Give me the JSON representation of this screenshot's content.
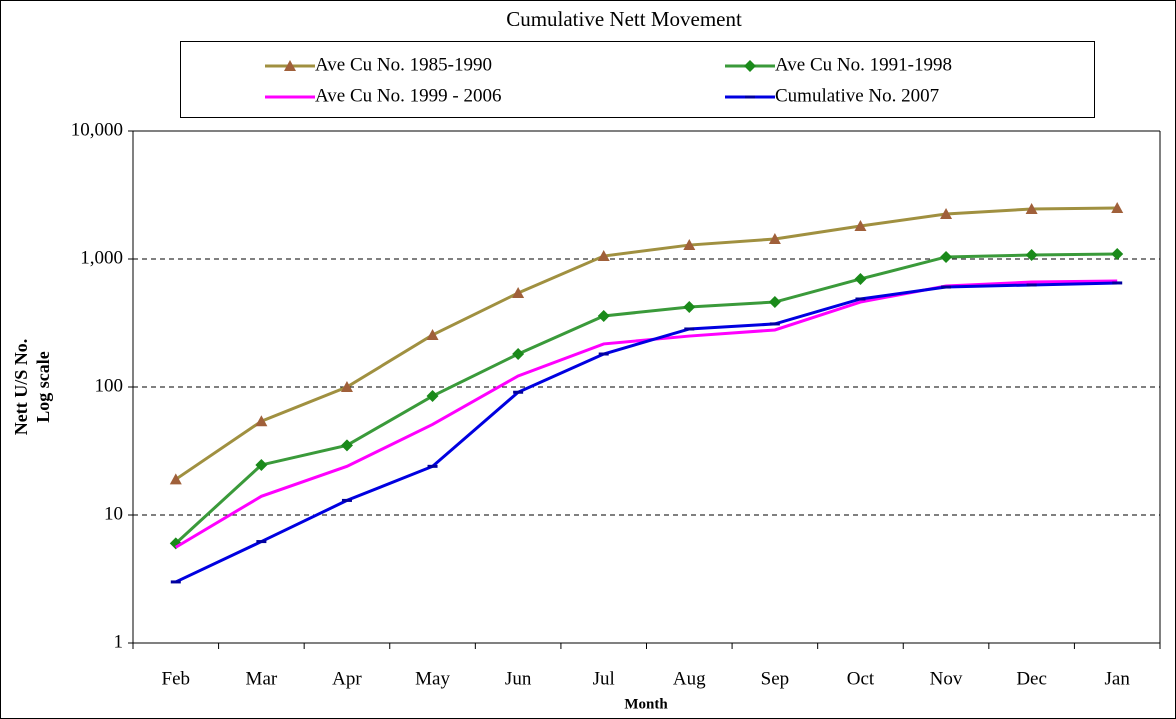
{
  "chart_data": {
    "type": "line",
    "title": "Cumulative Nett Movement",
    "xlabel": "Month",
    "ylabel": [
      "Nett U/S No.",
      "Log scale"
    ],
    "categories": [
      "Feb",
      "Mar",
      "Apr",
      "May",
      "Jun",
      "Jul",
      "Aug",
      "Sep",
      "Oct",
      "Nov",
      "Dec",
      "Jan"
    ],
    "log_scale": true,
    "ylim": [
      1,
      10000
    ],
    "yticks": [
      1,
      10,
      100,
      {
        "value": 1000,
        "label": "1,000"
      },
      {
        "value": 10000,
        "label": "10,000"
      }
    ],
    "grid": true,
    "series": [
      {
        "name": "Ave Cu No. 1985-1990",
        "color": "#a09040",
        "marker": "triangle",
        "marker_color": "#a0603a",
        "values": [
          19,
          54,
          100,
          255,
          542,
          1055,
          1285,
          1433,
          1810,
          2248,
          2457,
          2502
        ]
      },
      {
        "name": "Ave Cu No. 1991-1998",
        "color": "#3a9a3a",
        "marker": "diamond",
        "marker_color": "#1a8a1a",
        "values": [
          6,
          24.6,
          35,
          85,
          181,
          359,
          422,
          461,
          698,
          1037,
          1074,
          1094
        ]
      },
      {
        "name": "Ave Cu No. 1999 - 2006",
        "color": "#ff00ff",
        "marker": "none",
        "marker_color": "#ff00ff",
        "values": [
          5.6,
          14,
          24,
          51,
          122,
          217,
          250,
          279,
          461,
          615,
          661,
          673
        ]
      },
      {
        "name": "Cumulative No. 2007",
        "color": "#0000e0",
        "marker": "dash",
        "marker_color": "#0000a0",
        "values": [
          3,
          6.2,
          13,
          24,
          91,
          181,
          284,
          311,
          487,
          604,
          627,
          650
        ]
      }
    ]
  }
}
